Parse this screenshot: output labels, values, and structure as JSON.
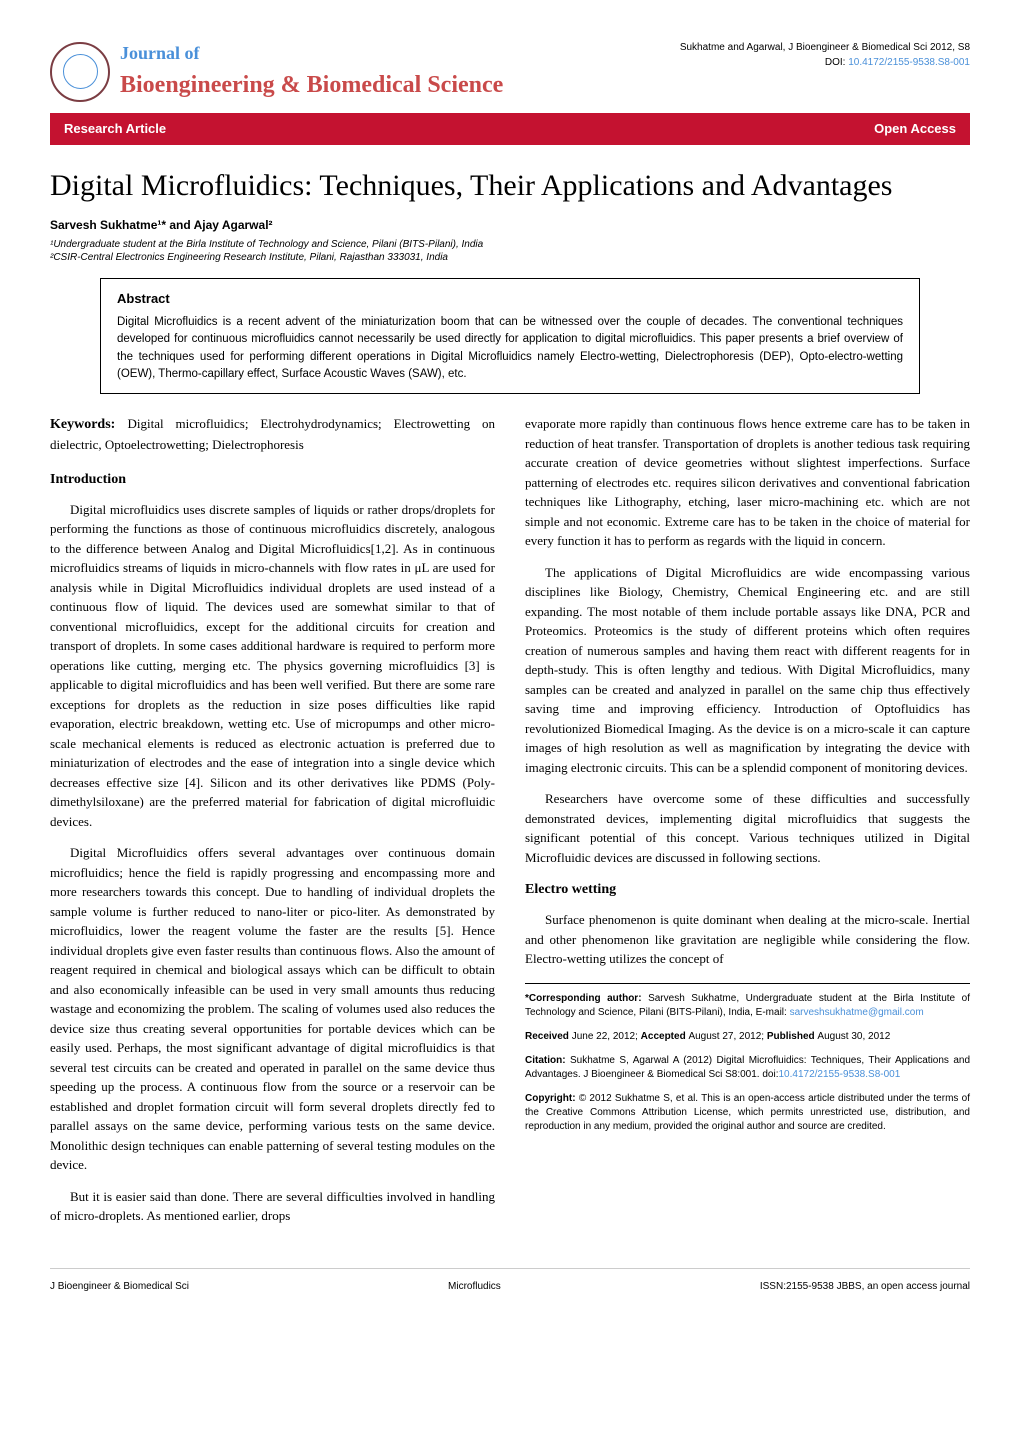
{
  "header": {
    "journal_of": "Journal of",
    "journal_name": "Bioengineering & Biomedical Science",
    "citation_line": "Sukhatme and Agarwal, J Bioengineer & Biomedical Sci 2012, S8",
    "doi_label": "DOI: ",
    "doi": "10.4172/2155-9538.S8-001"
  },
  "ribbon": {
    "left": "Research Article",
    "right": "Open Access"
  },
  "title": "Digital Microfluidics: Techniques, Their Applications and Advantages",
  "authors": "Sarvesh Sukhatme¹* and Ajay Agarwal²",
  "affiliation1": "¹Undergraduate student at the Birla Institute of Technology and Science, Pilani (BITS-Pilani), India",
  "affiliation2": "²CSIR-Central Electronics Engineering Research Institute, Pilani, Rajasthan 333031, India",
  "abstract": {
    "heading": "Abstract",
    "text": "Digital Microfluidics is a recent advent of the miniaturization boom that can be witnessed over the couple of decades. The conventional techniques developed for continuous microfluidics cannot necessarily be used directly for application to digital microfluidics. This paper presents a brief overview of the techniques used for performing different operations in Digital Microfluidics namely Electro-wetting, Dielectrophoresis (DEP), Opto-electro-wetting (OEW), Thermo-capillary effect, Surface Acoustic Waves (SAW), etc."
  },
  "keywords": {
    "label": "Keywords: ",
    "text": "Digital microfluidics; Electrohydrodynamics; Electrowetting on dielectric, Optoelectrowetting; Dielectrophoresis"
  },
  "sections": {
    "intro_heading": "Introduction",
    "intro_p1": "Digital microfluidics uses discrete samples of liquids or rather drops/droplets for performing the functions as those of continuous microfluidics discretely, analogous to the difference between Analog and Digital Microfluidics[1,2]. As in continuous microfluidics streams of liquids in micro-channels with flow rates in μL are used for analysis while in Digital Microfluidics individual droplets are used instead of a continuous flow of liquid. The devices used are somewhat similar to that of conventional microfluidics, except for the additional circuits for creation and transport of droplets. In some cases additional hardware is required to perform more operations like cutting, merging etc. The physics governing microfluidics [3] is applicable to digital microfluidics and has been well verified. But there are some rare exceptions for droplets as the reduction in size poses difficulties like rapid evaporation, electric breakdown, wetting etc. Use of micropumps and other micro-scale mechanical elements is reduced as electronic actuation is preferred due to miniaturization of electrodes and the ease of integration into a single device which decreases effective size [4]. Silicon and its other derivatives like PDMS (Poly-dimethylsiloxane) are the preferred material for fabrication of digital microfluidic devices.",
    "intro_p2": "Digital Microfluidics offers several advantages over continuous domain microfluidics; hence the field is rapidly progressing and encompassing more and more researchers towards this concept. Due to handling of individual droplets the sample volume is further reduced to nano-liter or pico-liter. As demonstrated by microfluidics, lower the reagent volume the faster are the results [5]. Hence individual droplets give even faster results than continuous flows. Also the amount of reagent required in chemical and biological assays which can be difficult to obtain and also economically infeasible can be used in very small amounts thus reducing wastage and economizing the problem. The scaling of volumes used also reduces the device size thus creating several opportunities for portable devices which can be easily used. Perhaps, the most significant advantage of digital microfluidics is that several test circuits can be created and operated in parallel on the same device thus speeding up the process. A continuous flow from the source or a reservoir can be established and droplet formation circuit will form several droplets directly fed to parallel assays on the same device, performing various tests on the same device. Monolithic design techniques can enable patterning of several testing modules on the device.",
    "intro_p3": "But it is easier said than done. There are several difficulties involved in handling of micro-droplets. As mentioned earlier, drops",
    "col2_p1": "evaporate more rapidly than continuous flows hence extreme care has to be taken in reduction of heat transfer. Transportation of droplets is another tedious task requiring accurate creation of device geometries without slightest imperfections. Surface patterning of electrodes etc. requires silicon derivatives and conventional fabrication techniques like Lithography, etching, laser micro-machining etc. which are not simple and not economic. Extreme care has to be taken in the choice of material for every function it has to perform as regards with the liquid in concern.",
    "col2_p2": "The applications of Digital Microfluidics are wide encompassing various disciplines like Biology, Chemistry, Chemical Engineering etc. and are still expanding. The most notable of them include portable assays like DNA, PCR and Proteomics. Proteomics is the study of different proteins which often requires creation of numerous samples and having them react with different reagents for in depth-study. This is often lengthy and tedious. With Digital Microfluidics, many samples can be created and analyzed in parallel on the same chip thus effectively saving time and improving efficiency. Introduction of Optofluidics has revolutionized Biomedical Imaging. As the device is on a micro-scale it can capture images of high resolution as well as magnification by integrating the device with imaging electronic circuits. This can be a splendid component of monitoring devices.",
    "col2_p3": "Researchers have overcome some of these difficulties and successfully demonstrated devices, implementing digital microfluidics that suggests the significant potential of this concept. Various techniques utilized in Digital Microfluidic devices are discussed in following sections.",
    "electro_heading": "Electro wetting",
    "electro_p1": "Surface phenomenon is quite dominant when dealing at the micro-scale. Inertial and other phenomenon like gravitation are negligible while considering the flow. Electro-wetting utilizes the concept of"
  },
  "info": {
    "corresponding_label": "*Corresponding author: ",
    "corresponding_text": "Sarvesh Sukhatme, Undergraduate student at the Birla Institute of Technology and Science, Pilani (BITS-Pilani), India, E-mail: ",
    "corresponding_email": "sarveshsukhatme@gmail.com",
    "received_label": "Received ",
    "received_date": "June 22, 2012; ",
    "accepted_label": "Accepted  ",
    "accepted_date": "August 27, 2012; ",
    "published_label": "Published  ",
    "published_date": "August 30, 2012",
    "citation_label": "Citation: ",
    "citation_text": "Sukhatme S, Agarwal A (2012) Digital Microfluidics: Techniques, Their Applications and Advantages. J Bioengineer & Biomedical Sci S8:001. doi:",
    "citation_doi": "10.4172/2155-9538.S8-001",
    "copyright_label": "Copyright: ",
    "copyright_text": "© 2012 Sukhatme S, et al. This is an open-access article distributed under the terms of the Creative Commons Attribution License, which permits unrestricted use, distribution, and reproduction in any medium, provided the original author and source are credited."
  },
  "footer": {
    "left": "J Bioengineer & Biomedical Sci",
    "center": "Microfludics",
    "right": "ISSN:2155-9538 JBBS, an open access journal"
  }
}
